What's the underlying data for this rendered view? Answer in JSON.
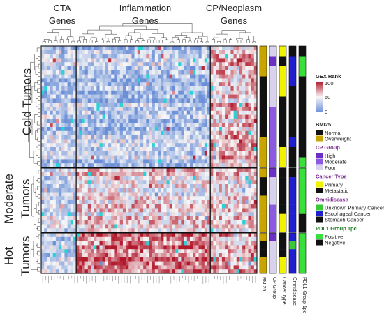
{
  "chart_data": {
    "type": "heatmap",
    "col_groups": [
      {
        "label_lines": [
          "CTA",
          "Genes"
        ],
        "columns": 12
      },
      {
        "label_lines": [
          "Inflammation",
          "Genes"
        ],
        "columns": 46
      },
      {
        "label_lines": [
          "CP/Neoplasm",
          "Genes"
        ],
        "columns": 16
      }
    ],
    "row_groups": [
      {
        "label_lines": [
          "Cold Tumors"
        ],
        "rows": 30
      },
      {
        "label_lines": [
          "Moderate",
          "Tumors"
        ],
        "rows": 16
      },
      {
        "label_lines": [
          "Hot",
          "Tumors"
        ],
        "rows": 10
      }
    ],
    "annotation_tracks": [
      "BMI25",
      "CP Group",
      "Cancer Type",
      "Omnidisease",
      "PDL1 Group 1pc"
    ],
    "colorbar": {
      "title": "GEX Rank",
      "ticks": [
        100,
        50,
        0
      ],
      "colors": [
        "#b2182b",
        "#f7f7f7",
        "#6b8fd6"
      ]
    },
    "legends": [
      {
        "title": "BMI25",
        "title_color": "#222222",
        "items": [
          {
            "label": "Normal",
            "color": "#111111"
          },
          {
            "label": "Overweight",
            "color": "#c8a400"
          }
        ]
      },
      {
        "title": "CP Group",
        "title_color": "#7b2d8e",
        "items": [
          {
            "label": "High",
            "color": "#6a2fc4"
          },
          {
            "label": "Moderate",
            "color": "#8c5ae0"
          },
          {
            "label": "Poor",
            "color": "#d9d2ee"
          }
        ]
      },
      {
        "title": "Cancer Type",
        "title_color": "#7b2d8e",
        "items": [
          {
            "label": "Primary",
            "color": "#f2f200"
          },
          {
            "label": "Metastatic",
            "color": "#111111"
          }
        ]
      },
      {
        "title": "Omnidisease",
        "title_color": "#7b2d8e",
        "items": [
          {
            "label": "Unknown Primary Cancer",
            "color": "#39c839"
          },
          {
            "label": "Esophageal Cancer",
            "color": "#1f1fd0"
          },
          {
            "label": "Stomach Cancer",
            "color": "#111111"
          }
        ]
      },
      {
        "title": "PDL1 Group 1pc",
        "title_color": "#1e7a1e",
        "items": [
          {
            "label": "Positive",
            "color": "#39e039"
          },
          {
            "label": "Negative",
            "color": "#111111"
          }
        ]
      }
    ]
  }
}
